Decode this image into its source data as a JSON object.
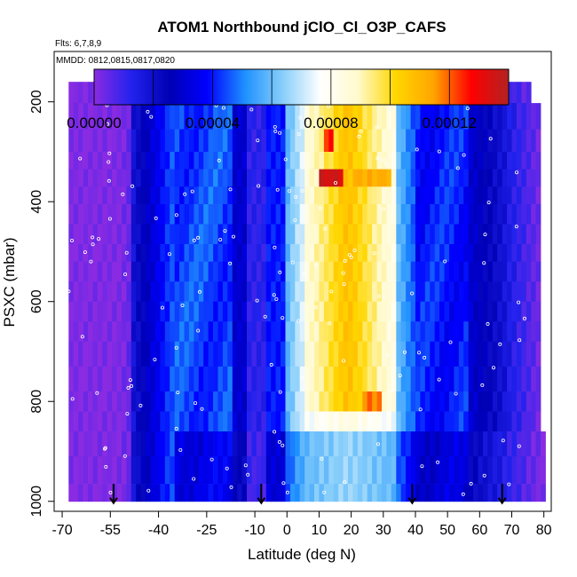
{
  "chart_data": {
    "type": "heatmap",
    "title": "ATOM1 Northbound jClO_Cl_O3P_CAFS",
    "annotations": [
      "Flts: 6,7,8,9",
      "MMDD: 0812,0815,0817,0820"
    ],
    "xlabel": "Latitude (deg N)",
    "ylabel": "PSXC (mbar)",
    "xlim": [
      -70,
      80
    ],
    "ylim": [
      1000,
      100
    ],
    "x_ticks": [
      -70,
      -55,
      -40,
      -25,
      -10,
      0,
      10,
      20,
      30,
      40,
      50,
      60,
      70,
      80
    ],
    "x_tick_labels": [
      "-70",
      "-55",
      "-40",
      "-25",
      "-10",
      "0",
      "10",
      "20",
      "30",
      "40",
      "50",
      "60",
      "70",
      "80"
    ],
    "y_ticks": [
      200,
      400,
      600,
      800,
      1000
    ],
    "y_tick_labels": [
      "200",
      "400",
      "600",
      "800",
      "1000"
    ],
    "colorbar": {
      "range": [
        0,
        0.00014
      ],
      "tick_values": [
        0,
        4e-05,
        8e-05,
        0.00012
      ],
      "tick_labels": [
        "0.00000",
        "0.00004",
        "0.00008",
        "0.00012"
      ],
      "colors": [
        "#8a2be2",
        "#2222ee",
        "#0000b4",
        "#0000ff",
        "#1e90ff",
        "#87cefa",
        "#ffffff",
        "#fffacd",
        "#ffd700",
        "#ffa500",
        "#ff0000",
        "#b22222"
      ]
    },
    "profile_markers_lat": [
      -54,
      -8,
      39,
      67
    ],
    "data_extent": {
      "lat": [
        -68,
        78
      ],
      "pressure": [
        1000,
        160
      ]
    },
    "pressure_levels": [
      175,
      230,
      280,
      320,
      350,
      390,
      420,
      470,
      500,
      540,
      580,
      620,
      660,
      700,
      760,
      800,
      840,
      880,
      940,
      990
    ],
    "grid": false
  }
}
